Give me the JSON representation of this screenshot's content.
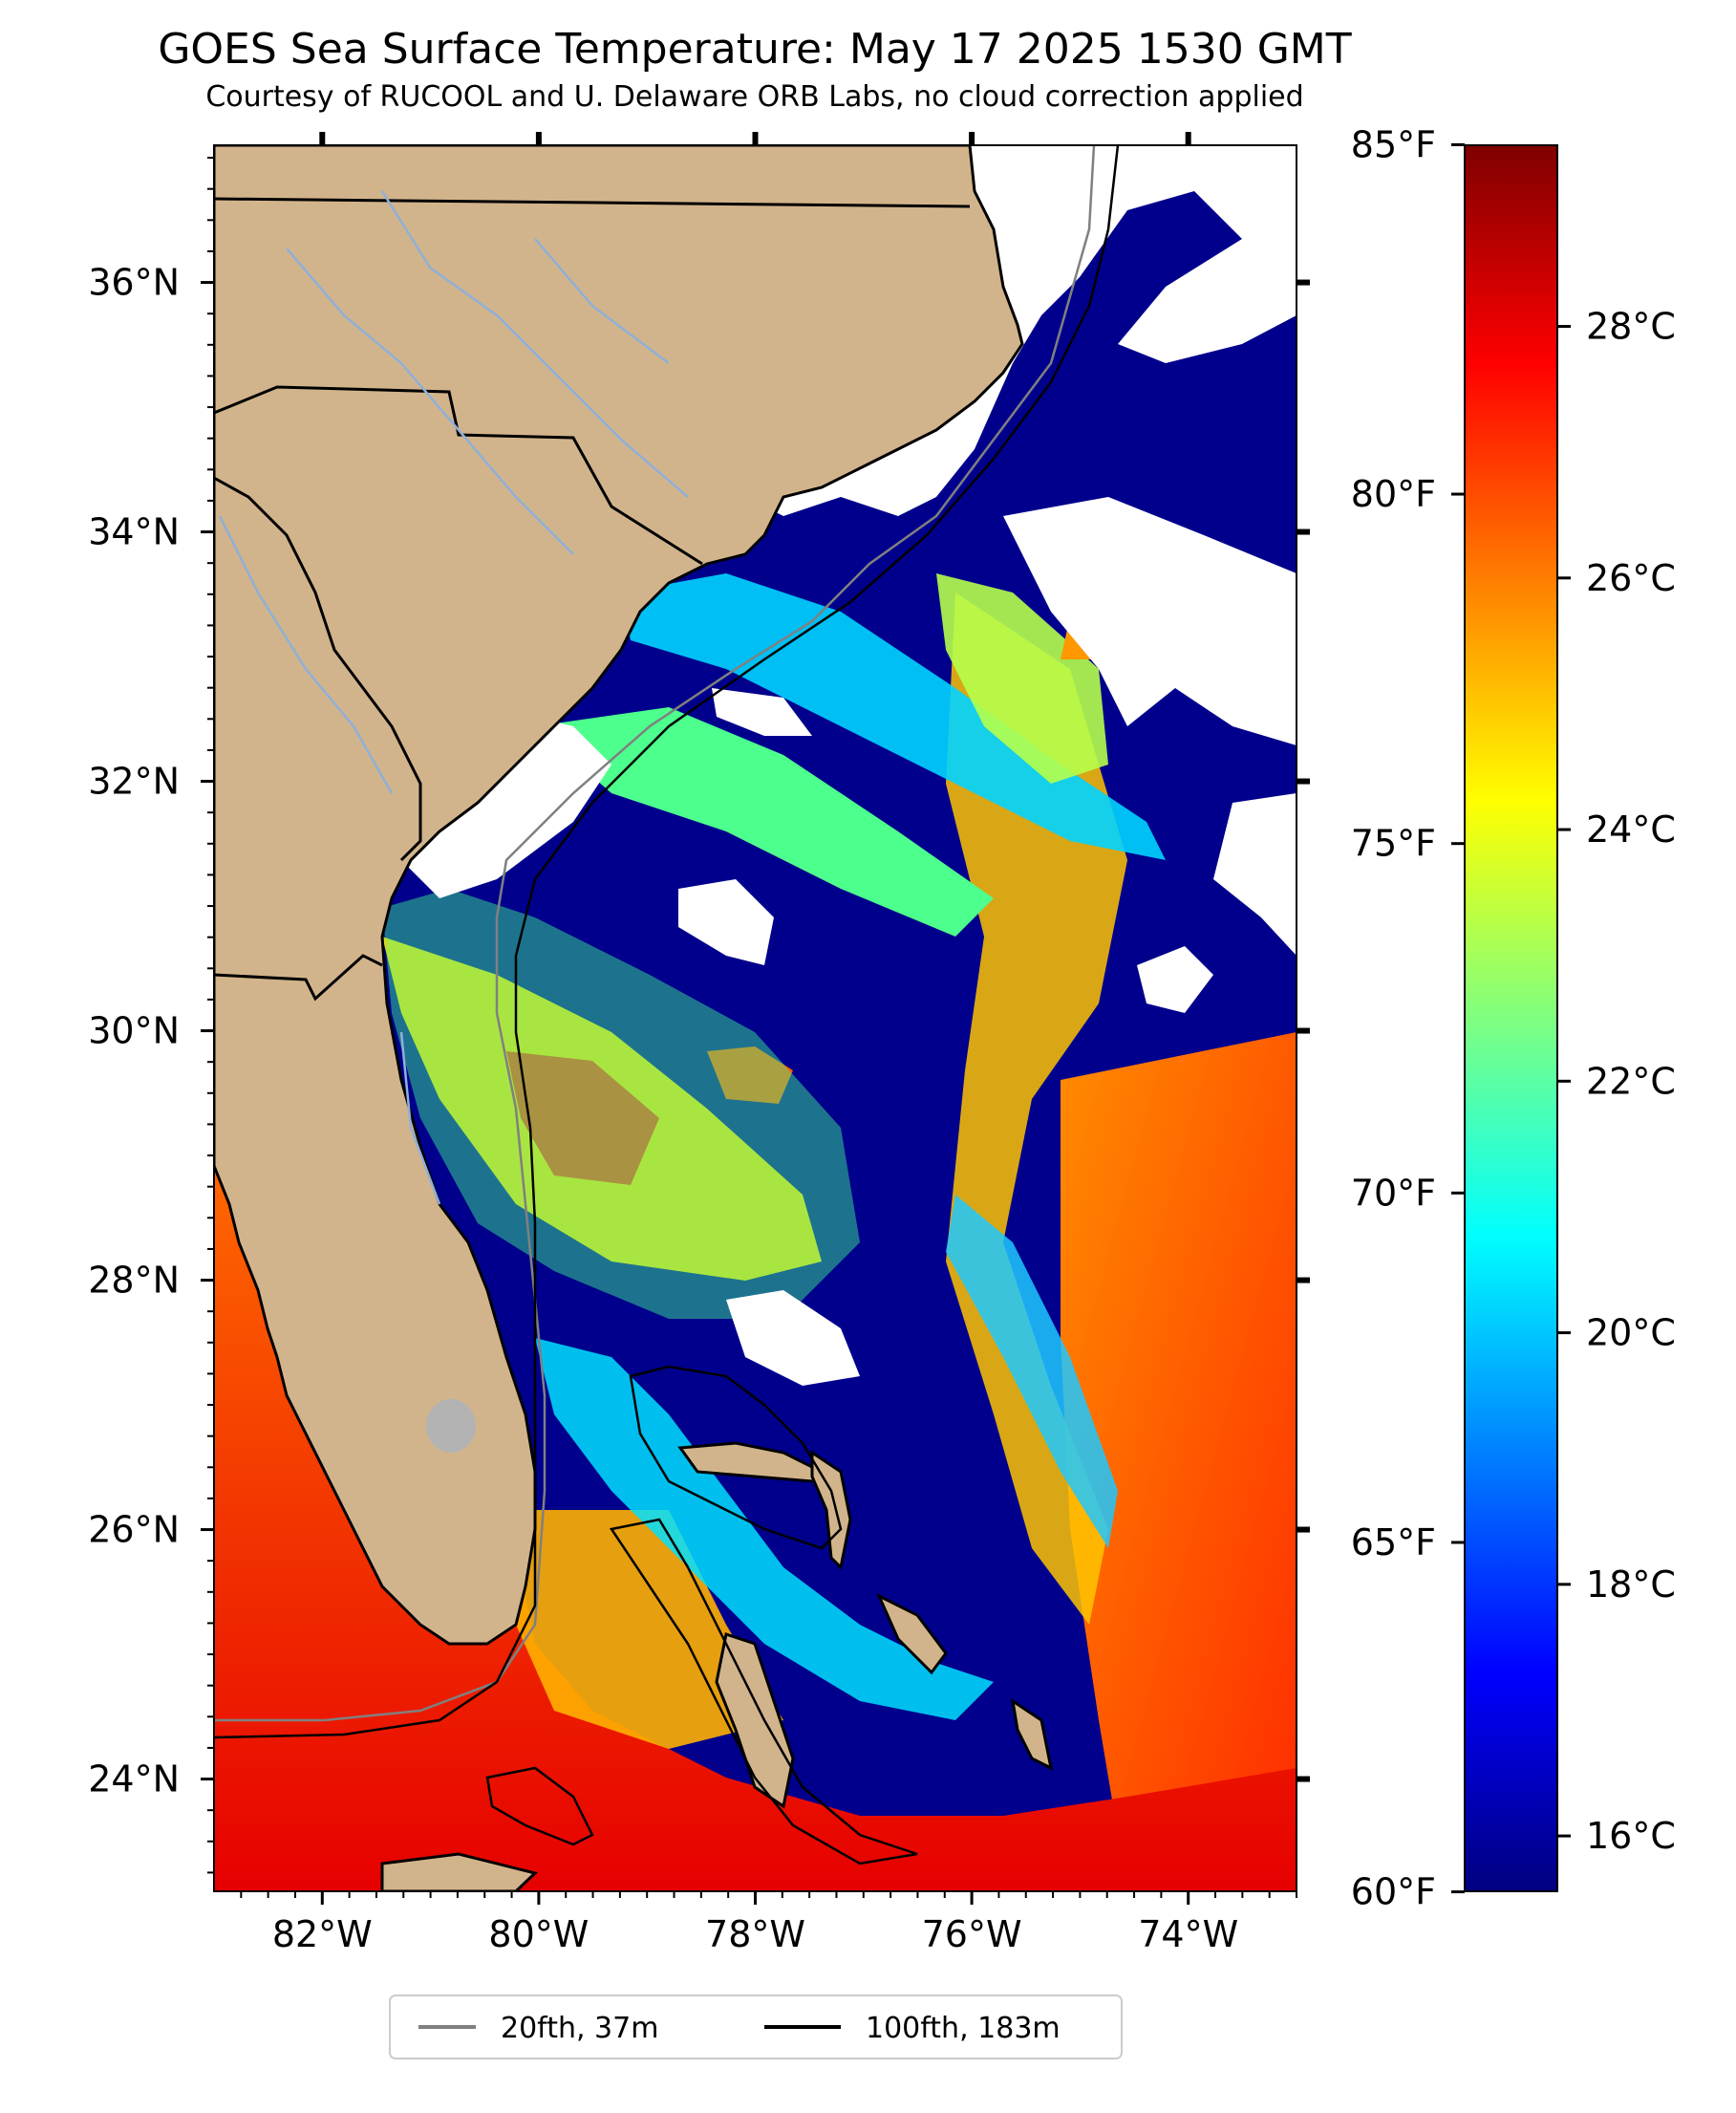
{
  "title": "GOES Sea Surface Temperature: May 17 2025 1530 GMT",
  "subtitle": "Courtesy of RUCOOL and U. Delaware ORB Labs, no cloud correction applied",
  "map": {
    "lon_range": [
      -83,
      -73
    ],
    "lat_range": [
      23.1,
      37.1
    ],
    "lon_ticks": [
      {
        "value": -82,
        "label": "82°W"
      },
      {
        "value": -80,
        "label": "80°W"
      },
      {
        "value": -78,
        "label": "78°W"
      },
      {
        "value": -76,
        "label": "76°W"
      },
      {
        "value": -74,
        "label": "74°W"
      }
    ],
    "lat_ticks": [
      {
        "value": 36,
        "label": "36°N"
      },
      {
        "value": 34,
        "label": "34°N"
      },
      {
        "value": 32,
        "label": "32°N"
      },
      {
        "value": 30,
        "label": "30°N"
      },
      {
        "value": 28,
        "label": "28°N"
      },
      {
        "value": 26,
        "label": "26°N"
      },
      {
        "value": 24,
        "label": "24°N"
      }
    ],
    "colors": {
      "land": "#d2b48c",
      "coastline": "#000000",
      "rivers": "#8fb0d8",
      "cloud": "#ffffff"
    }
  },
  "colorbar": {
    "range_c": [
      15.56,
      29.44
    ],
    "celsius_ticks": [
      {
        "value": 16,
        "label": "16°C"
      },
      {
        "value": 18,
        "label": "18°C"
      },
      {
        "value": 20,
        "label": "20°C"
      },
      {
        "value": 22,
        "label": "22°C"
      },
      {
        "value": 24,
        "label": "24°C"
      },
      {
        "value": 26,
        "label": "26°C"
      },
      {
        "value": 28,
        "label": "28°C"
      }
    ],
    "fahrenheit_ticks": [
      {
        "value": 60,
        "label": "60°F"
      },
      {
        "value": 65,
        "label": "65°F"
      },
      {
        "value": 70,
        "label": "70°F"
      },
      {
        "value": 75,
        "label": "75°F"
      },
      {
        "value": 80,
        "label": "80°F"
      },
      {
        "value": 85,
        "label": "85°F"
      }
    ],
    "colormap": [
      "#00007f",
      "#0000ff",
      "#007fff",
      "#00ffff",
      "#7fff7f",
      "#ffff00",
      "#ff7f00",
      "#ff0000",
      "#7f0000"
    ]
  },
  "legend": {
    "entries": [
      {
        "label": "20fth, 37m",
        "color": "#808080"
      },
      {
        "label": "100fth, 183m",
        "color": "#000000"
      }
    ]
  }
}
